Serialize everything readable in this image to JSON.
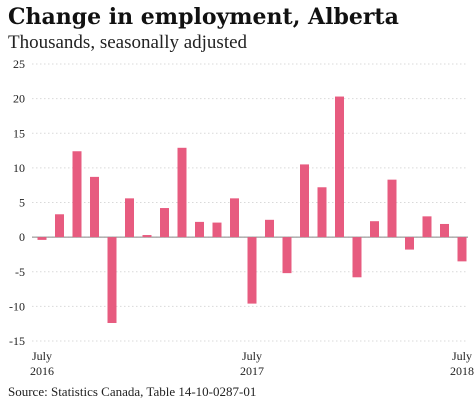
{
  "chart_data": {
    "type": "bar",
    "title": "Change in employment, Alberta",
    "subtitle": "Thousands, seasonally adjusted",
    "source": "Source: Statistics Canada, Table 14-10-0287-01",
    "ylim": [
      -15,
      25
    ],
    "yticks": [
      -15,
      -10,
      -5,
      0,
      5,
      10,
      15,
      20,
      25
    ],
    "grid": true,
    "bar_color": "#e75b7f",
    "x_tick_labels": [
      {
        "index": 0,
        "month": "July",
        "year": "2016"
      },
      {
        "index": 12,
        "month": "July",
        "year": "2017"
      },
      {
        "index": 24,
        "month": "July",
        "year": "2018"
      }
    ],
    "categories": [
      "Jul 2016",
      "Aug 2016",
      "Sep 2016",
      "Oct 2016",
      "Nov 2016",
      "Dec 2016",
      "Jan 2017",
      "Feb 2017",
      "Mar 2017",
      "Apr 2017",
      "May 2017",
      "Jun 2017",
      "Jul 2017",
      "Aug 2017",
      "Sep 2017",
      "Oct 2017",
      "Nov 2017",
      "Dec 2017",
      "Jan 2018",
      "Feb 2018",
      "Mar 2018",
      "Apr 2018",
      "May 2018",
      "Jun 2018",
      "Jul 2018"
    ],
    "values": [
      -0.4,
      3.3,
      12.4,
      8.7,
      -12.4,
      5.6,
      0.3,
      4.2,
      12.9,
      2.2,
      2.1,
      5.6,
      -9.6,
      2.5,
      -5.2,
      10.5,
      7.2,
      20.3,
      -5.8,
      2.3,
      8.3,
      -1.8,
      3.0,
      1.9,
      -3.5
    ]
  }
}
